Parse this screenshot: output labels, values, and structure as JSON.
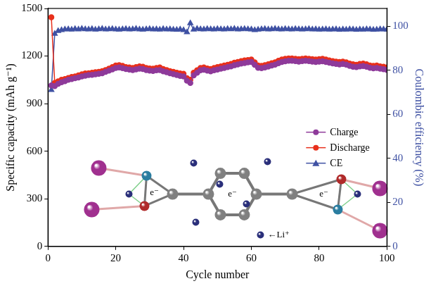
{
  "chart_data": {
    "type": "line",
    "xlabel": "Cycle number",
    "ylabel": "Specific capacity (mAh g⁻¹)",
    "y2label": "Coulombic efficiency (%)",
    "x": [
      1,
      2,
      3,
      4,
      5,
      6,
      7,
      8,
      9,
      10,
      11,
      12,
      13,
      14,
      15,
      16,
      17,
      18,
      19,
      20,
      21,
      22,
      23,
      24,
      25,
      26,
      27,
      28,
      29,
      30,
      31,
      32,
      33,
      34,
      35,
      36,
      37,
      38,
      39,
      40,
      41,
      42,
      43,
      44,
      45,
      46,
      47,
      48,
      49,
      50,
      51,
      52,
      53,
      54,
      55,
      56,
      57,
      58,
      59,
      60,
      61,
      62,
      63,
      64,
      65,
      66,
      67,
      68,
      69,
      70,
      71,
      72,
      73,
      74,
      75,
      76,
      77,
      78,
      79,
      80,
      81,
      82,
      83,
      84,
      85,
      86,
      87,
      88,
      89,
      90,
      91,
      92,
      93,
      94,
      95,
      96,
      97,
      98,
      99,
      100
    ],
    "xlim": [
      0,
      100
    ],
    "xticks": [
      0,
      20,
      40,
      60,
      80,
      100
    ],
    "ylim": [
      0,
      1500
    ],
    "yticks": [
      0,
      300,
      600,
      900,
      1200,
      1500
    ],
    "y2lim": [
      0,
      108
    ],
    "y2ticks": [
      0,
      20,
      40,
      60,
      80,
      100
    ],
    "grid": false,
    "legend": "right",
    "series": [
      {
        "name": "Charge",
        "color": "#8e3a9a",
        "marker": "circle",
        "line_style": "solid",
        "values": [
          1015,
          1010,
          1025,
          1035,
          1042,
          1050,
          1055,
          1060,
          1065,
          1072,
          1076,
          1080,
          1082,
          1085,
          1088,
          1092,
          1100,
          1108,
          1116,
          1125,
          1128,
          1124,
          1118,
          1115,
          1112,
          1116,
          1120,
          1118,
          1112,
          1108,
          1106,
          1110,
          1112,
          1104,
          1098,
          1092,
          1086,
          1080,
          1075,
          1072,
          1045,
          1030,
          1078,
          1095,
          1110,
          1114,
          1108,
          1104,
          1110,
          1115,
          1120,
          1125,
          1130,
          1135,
          1142,
          1147,
          1152,
          1156,
          1160,
          1163,
          1145,
          1126,
          1124,
          1128,
          1134,
          1140,
          1146,
          1155,
          1163,
          1167,
          1170,
          1170,
          1168,
          1165,
          1168,
          1170,
          1168,
          1165,
          1163,
          1165,
          1167,
          1163,
          1158,
          1154,
          1150,
          1147,
          1150,
          1146,
          1138,
          1133,
          1130,
          1135,
          1137,
          1133,
          1126,
          1123,
          1125,
          1120,
          1117,
          1113
        ]
      },
      {
        "name": "Discharge",
        "color": "#e8301c",
        "marker": "circle",
        "line_style": "solid",
        "values": [
          1445,
          1030,
          1040,
          1050,
          1055,
          1062,
          1068,
          1072,
          1078,
          1085,
          1090,
          1092,
          1095,
          1098,
          1100,
          1105,
          1112,
          1120,
          1130,
          1140,
          1142,
          1138,
          1130,
          1128,
          1125,
          1130,
          1135,
          1132,
          1125,
          1122,
          1120,
          1125,
          1128,
          1118,
          1112,
          1105,
          1100,
          1095,
          1090,
          1088,
          1060,
          1050,
          1095,
          1110,
          1125,
          1128,
          1122,
          1118,
          1125,
          1130,
          1135,
          1140,
          1145,
          1150,
          1158,
          1162,
          1168,
          1172,
          1175,
          1178,
          1160,
          1140,
          1138,
          1142,
          1148,
          1155,
          1160,
          1170,
          1178,
          1182,
          1185,
          1185,
          1182,
          1180,
          1183,
          1185,
          1182,
          1180,
          1178,
          1180,
          1182,
          1178,
          1172,
          1168,
          1165,
          1162,
          1165,
          1160,
          1152,
          1148,
          1145,
          1150,
          1152,
          1148,
          1140,
          1138,
          1140,
          1135,
          1132,
          1128
        ]
      },
      {
        "name": "CE",
        "color": "#3f51a3",
        "marker": "triangle",
        "line_style": "solid",
        "axis": "y2",
        "values": [
          71,
          96.5,
          97.8,
          98.2,
          98.5,
          98.6,
          98.4,
          98.7,
          98.5,
          98.8,
          98.6,
          98.5,
          98.7,
          98.4,
          98.6,
          98.8,
          98.5,
          98.6,
          98.7,
          98.5,
          98.4,
          98.6,
          98.7,
          98.5,
          98.6,
          98.8,
          98.5,
          98.4,
          98.6,
          98.7,
          98.5,
          98.6,
          98.4,
          98.7,
          98.5,
          98.6,
          98.4,
          98.3,
          98.5,
          98.2,
          97.2,
          101.3,
          98.4,
          98.8,
          98.6,
          98.5,
          98.7,
          98.6,
          98.5,
          98.7,
          98.6,
          98.5,
          98.7,
          98.6,
          98.8,
          98.5,
          98.6,
          98.7,
          98.6,
          98.5,
          98.2,
          98.4,
          98.6,
          98.7,
          98.5,
          98.6,
          98.8,
          98.6,
          98.5,
          98.7,
          98.6,
          98.5,
          98.7,
          98.6,
          98.5,
          98.6,
          98.7,
          98.5,
          98.6,
          98.4,
          98.5,
          98.6,
          98.4,
          98.5,
          98.6,
          98.3,
          98.5,
          98.4,
          98.6,
          98.5,
          98.3,
          98.5,
          98.4,
          98.6,
          98.5,
          98.3,
          98.4,
          98.6,
          98.5,
          98.4
        ]
      }
    ],
    "annotations": [
      "e⁻",
      "e⁻",
      "e⁻",
      "←Li⁺"
    ]
  }
}
